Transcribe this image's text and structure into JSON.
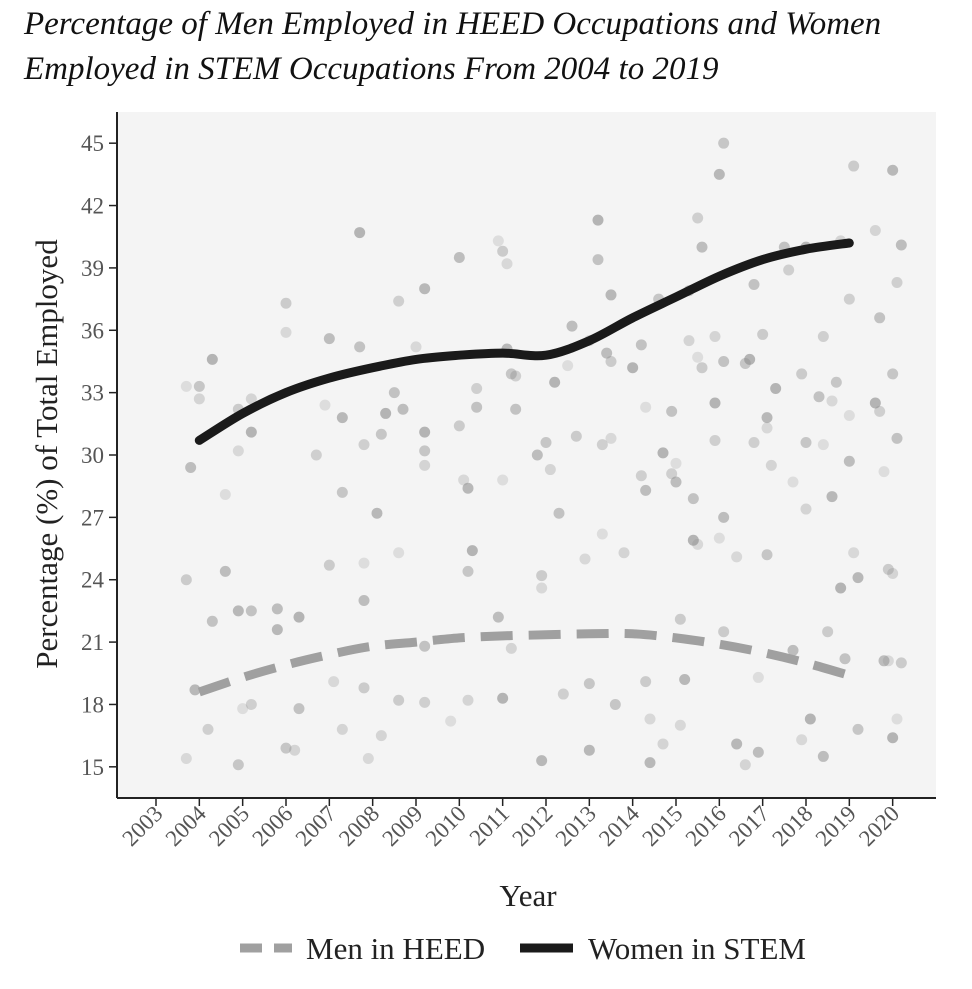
{
  "title_line1": "Percentage of Men Employed in HEED Occupations and Women",
  "title_line2": "Employed in STEM Occupations From 2004 to 2019",
  "chart_data": {
    "type": "line",
    "xlabel": "Year",
    "ylabel": "Percentage (%) of Total Employed",
    "x_ticks": [
      "2003",
      "2004",
      "2005",
      "2006",
      "2007",
      "2008",
      "2009",
      "2010",
      "2011",
      "2012",
      "2013",
      "2014",
      "2015",
      "2016",
      "2017",
      "2018",
      "2019",
      "2020"
    ],
    "y_ticks": [
      "15",
      "18",
      "21",
      "24",
      "27",
      "30",
      "33",
      "36",
      "39",
      "42",
      "45"
    ],
    "xlim": [
      2002.1,
      2021.0
    ],
    "ylim": [
      13.5,
      46.5
    ],
    "grid": false,
    "legend_position": "bottom",
    "series": [
      {
        "name": "Men in HEED",
        "style": "dashed",
        "color": "#a0a0a0",
        "x": [
          2004,
          2005,
          2006,
          2007,
          2008,
          2009,
          2010,
          2011,
          2012,
          2013,
          2014,
          2015,
          2016,
          2017,
          2018,
          2019
        ],
        "y": [
          18.6,
          19.3,
          19.9,
          20.4,
          20.8,
          21.0,
          21.2,
          21.3,
          21.35,
          21.4,
          21.4,
          21.2,
          20.9,
          20.5,
          20.0,
          19.4
        ]
      },
      {
        "name": "Women in STEM",
        "style": "solid",
        "color": "#1a1a1a",
        "x": [
          2004,
          2005,
          2006,
          2007,
          2008,
          2009,
          2010,
          2011,
          2012,
          2013,
          2014,
          2015,
          2016,
          2017,
          2018,
          2019
        ],
        "y": [
          30.7,
          32.0,
          33.0,
          33.7,
          34.2,
          34.6,
          34.8,
          34.9,
          34.8,
          35.5,
          36.6,
          37.6,
          38.6,
          39.4,
          39.9,
          40.2
        ]
      }
    ],
    "scatter_points": [
      [
        2003.7,
        33.3
      ],
      [
        2003.8,
        29.4
      ],
      [
        2003.7,
        24.0
      ],
      [
        2003.7,
        15.4
      ],
      [
        2003.9,
        18.7
      ],
      [
        2004.0,
        33.3
      ],
      [
        2004.0,
        32.7
      ],
      [
        2004.3,
        34.6
      ],
      [
        2004.3,
        22.0
      ],
      [
        2004.2,
        16.8
      ],
      [
        2004.6,
        28.1
      ],
      [
        2004.6,
        24.4
      ],
      [
        2004.9,
        32.2
      ],
      [
        2004.9,
        30.2
      ],
      [
        2004.9,
        22.5
      ],
      [
        2004.9,
        15.1
      ],
      [
        2005.2,
        32.7
      ],
      [
        2005.2,
        31.1
      ],
      [
        2005.2,
        22.5
      ],
      [
        2005.2,
        18.0
      ],
      [
        2005.0,
        17.8
      ],
      [
        2005.8,
        22.6
      ],
      [
        2006.0,
        37.3
      ],
      [
        2006.0,
        35.9
      ],
      [
        2005.8,
        21.6
      ],
      [
        2006.0,
        15.9
      ],
      [
        2006.2,
        15.8
      ],
      [
        2006.3,
        22.2
      ],
      [
        2006.3,
        17.8
      ],
      [
        2006.7,
        30.0
      ],
      [
        2006.9,
        32.4
      ],
      [
        2007.0,
        35.6
      ],
      [
        2007.0,
        24.7
      ],
      [
        2007.1,
        19.1
      ],
      [
        2007.3,
        31.8
      ],
      [
        2007.3,
        28.2
      ],
      [
        2007.3,
        16.8
      ],
      [
        2007.7,
        40.7
      ],
      [
        2007.7,
        35.2
      ],
      [
        2007.8,
        30.5
      ],
      [
        2007.8,
        24.8
      ],
      [
        2007.8,
        23.0
      ],
      [
        2007.8,
        18.8
      ],
      [
        2007.9,
        15.4
      ],
      [
        2008.1,
        27.2
      ],
      [
        2008.2,
        31.0
      ],
      [
        2008.2,
        16.5
      ],
      [
        2008.3,
        32.0
      ],
      [
        2008.5,
        33.0
      ],
      [
        2008.6,
        37.4
      ],
      [
        2008.6,
        25.3
      ],
      [
        2008.7,
        32.2
      ],
      [
        2008.6,
        18.2
      ],
      [
        2009.0,
        35.2
      ],
      [
        2009.2,
        38.0
      ],
      [
        2009.2,
        30.2
      ],
      [
        2009.2,
        29.5
      ],
      [
        2009.2,
        31.1
      ],
      [
        2009.2,
        20.8
      ],
      [
        2009.2,
        18.1
      ],
      [
        2009.8,
        17.2
      ],
      [
        2010.0,
        39.5
      ],
      [
        2010.0,
        31.4
      ],
      [
        2010.1,
        28.8
      ],
      [
        2010.2,
        28.4
      ],
      [
        2010.2,
        24.4
      ],
      [
        2010.2,
        18.2
      ],
      [
        2010.3,
        25.4
      ],
      [
        2010.4,
        32.3
      ],
      [
        2010.4,
        33.2
      ],
      [
        2010.9,
        40.3
      ],
      [
        2010.9,
        22.2
      ],
      [
        2011.0,
        39.8
      ],
      [
        2011.1,
        39.2
      ],
      [
        2011.1,
        35.1
      ],
      [
        2011.2,
        33.9
      ],
      [
        2011.2,
        20.7
      ],
      [
        2011.0,
        18.3
      ],
      [
        2011.3,
        32.2
      ],
      [
        2011.3,
        33.8
      ],
      [
        2011.0,
        28.8
      ],
      [
        2011.8,
        30.0
      ],
      [
        2011.9,
        24.2
      ],
      [
        2011.9,
        23.6
      ],
      [
        2011.9,
        15.3
      ],
      [
        2012.0,
        30.6
      ],
      [
        2012.1,
        29.3
      ],
      [
        2012.2,
        33.5
      ],
      [
        2012.3,
        27.2
      ],
      [
        2012.4,
        18.5
      ],
      [
        2012.5,
        34.3
      ],
      [
        2012.6,
        36.2
      ],
      [
        2012.7,
        30.9
      ],
      [
        2012.9,
        25.0
      ],
      [
        2013.0,
        15.8
      ],
      [
        2013.0,
        19.0
      ],
      [
        2013.0,
        35.5
      ],
      [
        2013.2,
        41.3
      ],
      [
        2013.2,
        39.4
      ],
      [
        2013.3,
        30.5
      ],
      [
        2013.3,
        26.2
      ],
      [
        2013.4,
        34.9
      ],
      [
        2013.5,
        34.5
      ],
      [
        2013.5,
        30.8
      ],
      [
        2013.5,
        37.7
      ],
      [
        2013.6,
        18.0
      ],
      [
        2013.8,
        25.3
      ],
      [
        2014.0,
        34.2
      ],
      [
        2014.2,
        35.3
      ],
      [
        2014.2,
        29.0
      ],
      [
        2014.3,
        32.3
      ],
      [
        2014.3,
        28.3
      ],
      [
        2014.3,
        19.1
      ],
      [
        2014.4,
        17.3
      ],
      [
        2014.4,
        15.2
      ],
      [
        2014.6,
        37.5
      ],
      [
        2014.7,
        16.1
      ],
      [
        2014.7,
        30.1
      ],
      [
        2014.9,
        32.1
      ],
      [
        2014.9,
        29.1
      ],
      [
        2015.0,
        29.6
      ],
      [
        2015.0,
        28.7
      ],
      [
        2015.1,
        22.1
      ],
      [
        2015.1,
        17.0
      ],
      [
        2015.2,
        19.2
      ],
      [
        2015.3,
        37.9
      ],
      [
        2015.3,
        35.5
      ],
      [
        2015.4,
        25.9
      ],
      [
        2015.4,
        27.9
      ],
      [
        2015.5,
        41.4
      ],
      [
        2015.5,
        34.7
      ],
      [
        2015.6,
        40.0
      ],
      [
        2015.6,
        34.2
      ],
      [
        2015.5,
        25.7
      ],
      [
        2016.0,
        43.5
      ],
      [
        2016.1,
        45.0
      ],
      [
        2015.9,
        35.7
      ],
      [
        2015.9,
        32.5
      ],
      [
        2016.1,
        34.5
      ],
      [
        2015.9,
        30.7
      ],
      [
        2016.0,
        26.0
      ],
      [
        2016.1,
        27.0
      ],
      [
        2016.1,
        21.5
      ],
      [
        2016.4,
        25.1
      ],
      [
        2016.4,
        16.1
      ],
      [
        2016.6,
        34.4
      ],
      [
        2016.6,
        15.1
      ],
      [
        2016.7,
        34.6
      ],
      [
        2016.8,
        38.2
      ],
      [
        2016.8,
        30.6
      ],
      [
        2016.9,
        19.3
      ],
      [
        2016.9,
        15.7
      ],
      [
        2017.0,
        35.8
      ],
      [
        2017.1,
        31.3
      ],
      [
        2017.1,
        31.8
      ],
      [
        2017.1,
        25.2
      ],
      [
        2017.2,
        29.5
      ],
      [
        2017.3,
        33.2
      ],
      [
        2017.5,
        40.0
      ],
      [
        2017.6,
        38.9
      ],
      [
        2017.7,
        28.7
      ],
      [
        2017.7,
        20.6
      ],
      [
        2017.9,
        33.9
      ],
      [
        2017.9,
        16.3
      ],
      [
        2018.0,
        40.0
      ],
      [
        2018.0,
        30.6
      ],
      [
        2018.0,
        27.4
      ],
      [
        2018.1,
        17.3
      ],
      [
        2018.3,
        32.8
      ],
      [
        2018.4,
        35.7
      ],
      [
        2018.4,
        30.5
      ],
      [
        2018.4,
        15.5
      ],
      [
        2018.5,
        21.5
      ],
      [
        2018.6,
        32.6
      ],
      [
        2018.6,
        28.0
      ],
      [
        2018.7,
        33.5
      ],
      [
        2018.8,
        40.3
      ],
      [
        2018.8,
        23.6
      ],
      [
        2018.9,
        20.2
      ],
      [
        2019.0,
        37.5
      ],
      [
        2019.0,
        31.9
      ],
      [
        2019.0,
        29.7
      ],
      [
        2019.1,
        43.9
      ],
      [
        2019.1,
        25.3
      ],
      [
        2019.2,
        24.1
      ],
      [
        2019.2,
        16.8
      ],
      [
        2019.6,
        40.8
      ],
      [
        2019.6,
        32.5
      ],
      [
        2019.7,
        36.6
      ],
      [
        2019.7,
        32.1
      ],
      [
        2019.8,
        29.2
      ],
      [
        2019.8,
        20.1
      ],
      [
        2019.9,
        24.5
      ],
      [
        2019.9,
        20.1
      ],
      [
        2020.0,
        43.7
      ],
      [
        2020.0,
        33.9
      ],
      [
        2020.0,
        24.3
      ],
      [
        2020.0,
        16.4
      ],
      [
        2020.1,
        30.8
      ],
      [
        2020.1,
        38.3
      ],
      [
        2020.1,
        17.3
      ],
      [
        2020.2,
        40.1
      ],
      [
        2020.2,
        20.0
      ]
    ]
  }
}
